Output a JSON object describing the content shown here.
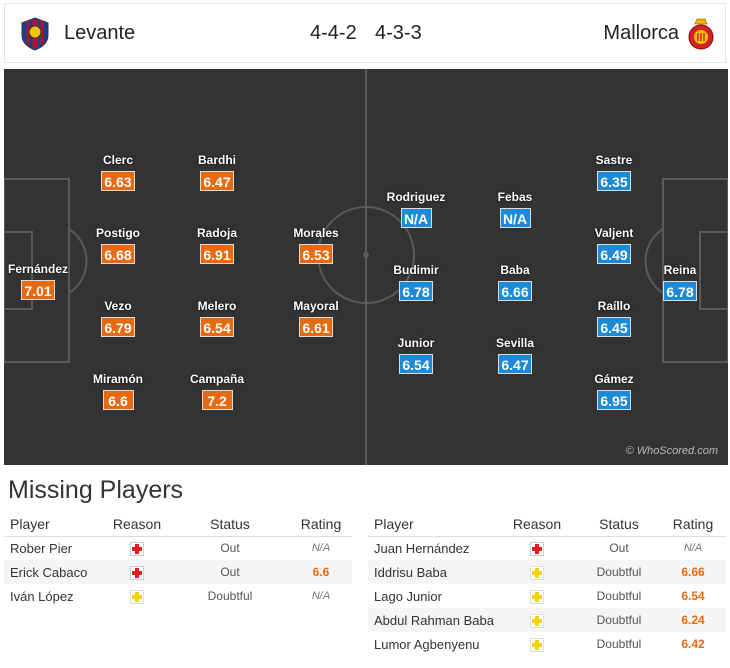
{
  "match": {
    "home": {
      "team": "Levante",
      "formation": "4-4-2",
      "badge_icon": "levante-badge-icon"
    },
    "away": {
      "team": "Mallorca",
      "formation": "4-3-3",
      "badge_icon": "mallorca-badge-icon"
    }
  },
  "colors": {
    "home_rating": "#e86a10",
    "away_rating": "#1b8ad8",
    "pitch": "#333333",
    "injury": "#e02020",
    "doubtful": "#f3d300"
  },
  "home_players": [
    {
      "name": "Fernández",
      "rating": "7.01"
    },
    {
      "name": "Clerc",
      "rating": "6.63"
    },
    {
      "name": "Postigo",
      "rating": "6.68"
    },
    {
      "name": "Vezo",
      "rating": "6.79"
    },
    {
      "name": "Miramón",
      "rating": "6.6"
    },
    {
      "name": "Bardhi",
      "rating": "6.47"
    },
    {
      "name": "Radoja",
      "rating": "6.91"
    },
    {
      "name": "Melero",
      "rating": "6.54"
    },
    {
      "name": "Campaña",
      "rating": "7.2"
    },
    {
      "name": "Morales",
      "rating": "6.53"
    },
    {
      "name": "Mayoral",
      "rating": "6.61"
    }
  ],
  "away_players": [
    {
      "name": "Rodriguez",
      "rating": "N/A"
    },
    {
      "name": "Budimir",
      "rating": "6.78"
    },
    {
      "name": "Junior",
      "rating": "6.54"
    },
    {
      "name": "Febas",
      "rating": "N/A"
    },
    {
      "name": "Baba",
      "rating": "6.66"
    },
    {
      "name": "Sevilla",
      "rating": "6.47"
    },
    {
      "name": "Sastre",
      "rating": "6.35"
    },
    {
      "name": "Valjent",
      "rating": "6.49"
    },
    {
      "name": "Raíllo",
      "rating": "6.45"
    },
    {
      "name": "Gámez",
      "rating": "6.95"
    },
    {
      "name": "Reina",
      "rating": "6.78"
    }
  ],
  "watermark": "© WhoScored.com",
  "missing": {
    "title": "Missing Players",
    "headers": {
      "player": "Player",
      "reason": "Reason",
      "status": "Status",
      "rating": "Rating"
    },
    "home": [
      {
        "player": "Rober Pier",
        "reason": "injury",
        "status": "Out",
        "rating": "N/A"
      },
      {
        "player": "Erick Cabaco",
        "reason": "injury",
        "status": "Out",
        "rating": "6.6"
      },
      {
        "player": "Iván López",
        "reason": "doubtful",
        "status": "Doubtful",
        "rating": "N/A"
      }
    ],
    "away": [
      {
        "player": "Juan Hernández",
        "reason": "injury",
        "status": "Out",
        "rating": "N/A"
      },
      {
        "player": "Iddrisu Baba",
        "reason": "doubtful",
        "status": "Doubtful",
        "rating": "6.66"
      },
      {
        "player": "Lago Junior",
        "reason": "doubtful",
        "status": "Doubtful",
        "rating": "6.54"
      },
      {
        "player": "Abdul Rahman Baba",
        "reason": "doubtful",
        "status": "Doubtful",
        "rating": "6.24"
      },
      {
        "player": "Lumor Agbenyenu",
        "reason": "doubtful",
        "status": "Doubtful",
        "rating": "6.42"
      }
    ]
  }
}
